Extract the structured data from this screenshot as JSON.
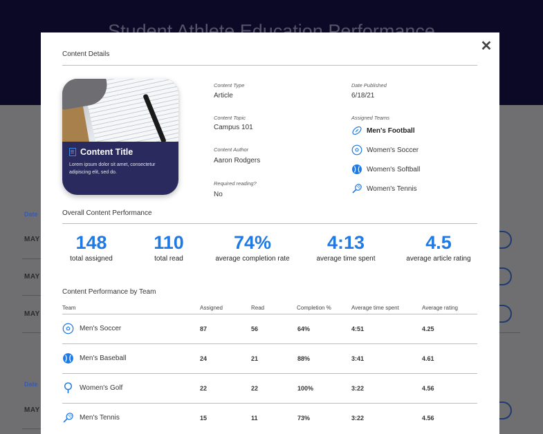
{
  "background": {
    "title": "Student Athlete Education Performance",
    "date_label": "Date",
    "row_label": "MAY"
  },
  "modal": {
    "close_symbol": "✕",
    "details_title": "Content Details",
    "card": {
      "title": "Content Title",
      "description": "Lorem ipsum dolor sit amet, consectetur adipiscing elit, sed do."
    },
    "fields": {
      "content_type": {
        "label": "Content Type",
        "value": "Article"
      },
      "content_topic": {
        "label": "Content Topic",
        "value": "Campus 101"
      },
      "content_author": {
        "label": "Content Author",
        "value": "Aaron Rodgers"
      },
      "required_reading": {
        "label": "Required reading?",
        "value": "No"
      },
      "date_published": {
        "label": "Date Published",
        "value": "6/18/21"
      },
      "assigned_teams_label": "Assigned Teams"
    },
    "assigned_teams": [
      {
        "name": "Men's Football",
        "icon": "football-icon"
      },
      {
        "name": "Women's Soccer",
        "icon": "soccer-ball-icon"
      },
      {
        "name": "Women's Softball",
        "icon": "softball-icon"
      },
      {
        "name": "Women's Tennis",
        "icon": "tennis-racket-icon"
      }
    ],
    "performance_title": "Overall Content Performance",
    "stats": [
      {
        "value": "148",
        "label": "total assigned"
      },
      {
        "value": "110",
        "label": "total read"
      },
      {
        "value": "74%",
        "label": "average completion rate"
      },
      {
        "value": "4:13",
        "label": "average time spent"
      },
      {
        "value": "4.5",
        "label": "average article rating"
      }
    ],
    "team_table": {
      "title": "Content Performance by Team",
      "headers": [
        "Team",
        "Assigned",
        "Read",
        "Completion %",
        "Average time spent",
        "Average rating"
      ],
      "rows": [
        {
          "team": "Men's Soccer",
          "icon": "soccer-ball-icon",
          "assigned": "87",
          "read": "56",
          "completion": "64%",
          "time": "4:51",
          "rating": "4.25"
        },
        {
          "team": "Men's Baseball",
          "icon": "baseball-icon",
          "assigned": "24",
          "read": "21",
          "completion": "88%",
          "time": "3:41",
          "rating": "4.61"
        },
        {
          "team": "Women's Golf",
          "icon": "golf-icon",
          "assigned": "22",
          "read": "22",
          "completion": "100%",
          "time": "3:22",
          "rating": "4.56"
        },
        {
          "team": "Men's Tennis",
          "icon": "tennis-racket-icon",
          "assigned": "15",
          "read": "11",
          "completion": "73%",
          "time": "3:22",
          "rating": "4.56"
        }
      ]
    },
    "accent_color": "#1f7ae6",
    "card_color": "#2b2a5e"
  }
}
